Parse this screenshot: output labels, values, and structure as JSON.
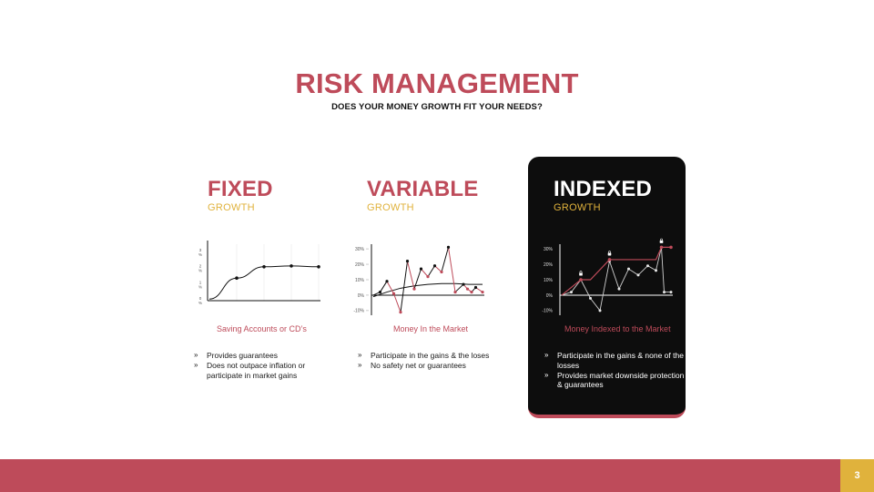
{
  "slide": {
    "title": "RISK MANAGEMENT",
    "subtitle": "DOES YOUR  MONEY GROWTH FIT YOUR NEEDS?",
    "page_number": "3"
  },
  "colors": {
    "accent": "#be4b5a",
    "gold": "#e0b23c",
    "dark": "#0d0d0d"
  },
  "panels": [
    {
      "title": "FIXED",
      "subtitle": "GROWTH",
      "caption": "Saving Accounts or CD’s",
      "bullets": [
        "Provides guarantees",
        "Does not outpace inflation or participate in market gains"
      ]
    },
    {
      "title": "VARIABLE",
      "subtitle": "GROWTH",
      "caption": "Money In the Market",
      "bullets": [
        "Participate in the  gains & the loses",
        "No safety net or guarantees"
      ]
    },
    {
      "title": "INDEXED",
      "subtitle": "GROWTH",
      "caption": "Money Indexed to the Market",
      "bullets": [
        "Participate in the  gains & none of the losses",
        "Provides market downside protection & guarantees"
      ]
    }
  ],
  "chart_data": [
    {
      "type": "line",
      "ytick_labels": [
        "3 %",
        "2 %",
        "1 %",
        "0 %"
      ],
      "x": [
        0,
        1,
        2,
        3,
        4
      ],
      "y": [
        0.1,
        1.4,
        2.1,
        2.15,
        2.1
      ],
      "ylim": [
        0,
        3.5
      ]
    },
    {
      "type": "line",
      "ytick_labels": [
        "30%",
        "20%",
        "10%",
        "0%",
        "-10%"
      ],
      "ylim": [
        -13,
        33
      ],
      "series": [
        {
          "x": [
            0,
            0.5,
            1,
            1.5,
            2,
            2.5,
            3,
            3.5,
            4,
            4.5,
            5,
            5.5,
            6,
            6.6,
            6.9,
            7.2,
            7.5,
            8
          ],
          "y": [
            0,
            2,
            9,
            1,
            -11,
            22,
            4,
            17,
            12,
            19,
            15,
            31,
            2,
            7,
            4,
            2,
            5,
            2
          ]
        },
        {
          "x": [
            0,
            1,
            2,
            3,
            4,
            5,
            6,
            7,
            8
          ],
          "y": [
            -1,
            2,
            4.5,
            6,
            7,
            7.5,
            7.5,
            7,
            7
          ]
        }
      ]
    },
    {
      "type": "line",
      "ytick_labels": [
        "30%",
        "20%",
        "10%",
        "0%",
        "-10%"
      ],
      "ylim": [
        -13,
        33
      ],
      "series": [
        {
          "x": [
            0,
            0.7,
            1.4,
            2.1,
            2.8,
            3.5,
            4.2,
            4.9,
            5.6,
            6.3,
            6.9,
            7.3,
            7.5,
            8.0
          ],
          "y": [
            0,
            2,
            10,
            -2,
            -10,
            22,
            4,
            17,
            13,
            19,
            16,
            31,
            2,
            2
          ]
        },
        {
          "x": [
            0,
            1.4,
            2.1,
            3.5,
            4.9,
            6.9,
            7.3,
            8.0
          ],
          "y": [
            0,
            10,
            10,
            23,
            23,
            23,
            31,
            31
          ]
        }
      ]
    }
  ]
}
